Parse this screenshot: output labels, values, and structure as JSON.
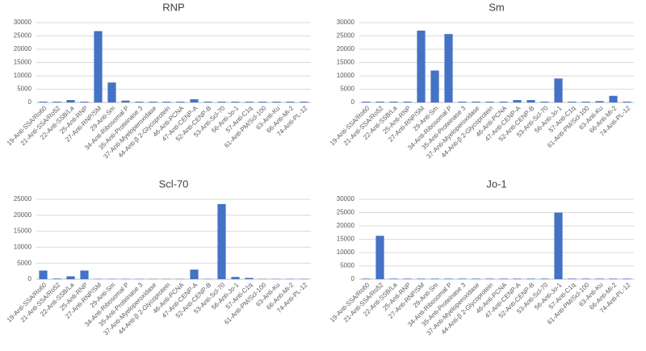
{
  "chart_data": [
    {
      "type": "bar",
      "title": "RNP",
      "color": "#4472c4",
      "categories": [
        "19-Anti-SSA/Ro60",
        "21-Anti-SSA/Ro52",
        "22-Anti-SSB/La",
        "25-Anti-RNP",
        "27-Anti-RNP/SM",
        "29-Anti-Sm",
        "34-Anti-Ribosomal P",
        "35-Anti-Proteinase 3",
        "37-Anti-Myeloperoxidase",
        "44-Anti-β 2-Glycoprotein",
        "46-Anti-PCNA",
        "47-Anti-CENP-A",
        "52-Anti-CENP-B",
        "53-Anti-Scl-70",
        "56-Anti-Jo-1",
        "57-Anti-C1q",
        "61-Anti-PM/Scl-100",
        "63-Anti-Ku",
        "66-Anti-Mi-2",
        "74-Anti-PL-12"
      ],
      "values": [
        300,
        300,
        900,
        300,
        26800,
        7500,
        700,
        300,
        300,
        300,
        300,
        1200,
        300,
        300,
        300,
        300,
        300,
        300,
        300,
        300
      ],
      "ylim": [
        0,
        30000
      ],
      "yticks": [
        0,
        5000,
        10000,
        15000,
        20000,
        25000,
        30000
      ],
      "grid": true
    },
    {
      "type": "bar",
      "title": "Sm",
      "color": "#4472c4",
      "categories": [
        "19-Anti-SSA/Ro60",
        "21-Anti-SSA/Ro52",
        "22-Anti-SSB/La",
        "25-Anti-RNP",
        "27-Anti-RNP/SM",
        "29-Anti-Sm",
        "34-Anti-Ribosomal P",
        "35-Anti-Proteinase 3",
        "37-Anti-Myeloperoxidase",
        "44-Anti-β 2-Glycoprotein",
        "46-Anti-PCNA",
        "47-Anti-CENP-A",
        "52-Anti-CENP-B",
        "53-Anti-Scl-70",
        "56-Anti-Jo-1",
        "57-Anti-C1q",
        "61-Anti-PM/Scl-100",
        "63-Anti-Ku",
        "66-Anti-Mi-2",
        "74-Anti-PL-12"
      ],
      "values": [
        300,
        300,
        300,
        300,
        27000,
        12000,
        25700,
        300,
        300,
        300,
        300,
        900,
        900,
        300,
        9000,
        300,
        300,
        500,
        2500,
        300
      ],
      "ylim": [
        0,
        30000
      ],
      "yticks": [
        0,
        5000,
        10000,
        15000,
        20000,
        25000,
        30000
      ],
      "grid": true
    },
    {
      "type": "bar",
      "title": "Scl-70",
      "color": "#4472c4",
      "categories": [
        "19-Anti-SSA/Ro60",
        "21-Anti-SSA/Ro52",
        "22-Anti-SSB/La",
        "25-Anti-RNP",
        "27-Anti-RNP/SM",
        "29-Anti-Sm",
        "34-Anti-Ribosomal P",
        "35-Anti-Proteinase 3",
        "37-Anti-Myeloperoxidase",
        "44-Anti-β 2-Glycoprotein",
        "46-Anti-PCNA",
        "47-Anti-CENP-A",
        "52-Anti-CENP-B",
        "53-Anti-Scl-70",
        "56-Anti-Jo-1",
        "57-Anti-C1q",
        "61-Anti-PM/Scl-100",
        "63-Anti-Ku",
        "66-Anti-Mi-2",
        "74-Anti-PL-12"
      ],
      "values": [
        2700,
        200,
        900,
        2700,
        100,
        100,
        100,
        100,
        100,
        100,
        100,
        3000,
        100,
        23500,
        700,
        400,
        100,
        100,
        100,
        100
      ],
      "ylim": [
        0,
        25000
      ],
      "yticks": [
        0,
        5000,
        10000,
        15000,
        20000,
        25000
      ],
      "grid": true
    },
    {
      "type": "bar",
      "title": "Jo-1",
      "color": "#4472c4",
      "categories": [
        "19-Anti-SSA/Ro60",
        "21-Anti-SSA/Ro52",
        "22-Anti-SSB/La",
        "25-Anti-RNP",
        "27-Anti-RNP/SM",
        "29-Anti-Sm",
        "34-Anti-Ribosomal P",
        "35-Anti-Proteinase 3",
        "37-Anti-Myeloperoxidase",
        "44-Anti-β 2-Glycoprotein",
        "46-Anti-PCNA",
        "47-Anti-CENP-A",
        "52-Anti-CENP-B",
        "53-Anti-Scl-70",
        "56-Anti-Jo-1",
        "57-Anti-C1q",
        "61-Anti-PM/Scl-100",
        "63-Anti-Ku",
        "66-Anti-Mi-2",
        "74-Anti-PL-12"
      ],
      "values": [
        200,
        16300,
        200,
        200,
        200,
        200,
        200,
        200,
        200,
        200,
        200,
        200,
        200,
        200,
        25000,
        200,
        200,
        200,
        200,
        200
      ],
      "ylim": [
        0,
        30000
      ],
      "yticks": [
        0,
        5000,
        10000,
        15000,
        20000,
        25000,
        30000
      ],
      "grid": true
    }
  ]
}
